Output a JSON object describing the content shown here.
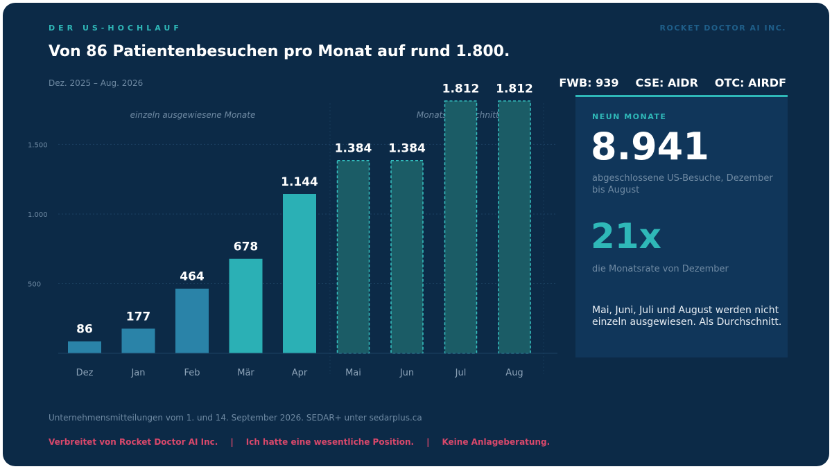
{
  "header": {
    "eyebrow": "DER US-HOCHLAUF",
    "brand": "ROCKET DOCTOR AI INC.",
    "title": "Von 86 Patientenbesuchen pro Monat auf rund 1.800.",
    "period": "Dez. 2025 – Aug. 2026",
    "tickers": [
      "FWB: 939",
      "CSE: AIDR",
      "OTC: AIRDF"
    ]
  },
  "chart_data": {
    "type": "bar",
    "categories": [
      "Dez",
      "Jan",
      "Feb",
      "Mär",
      "Apr",
      "Mai",
      "Jun",
      "Jul",
      "Aug"
    ],
    "values": [
      86,
      177,
      464,
      678,
      1144,
      1384,
      1384,
      1812,
      1812
    ],
    "value_labels": [
      "86",
      "177",
      "464",
      "678",
      "1.144",
      "1.384",
      "1.384",
      "1.812",
      "1.812"
    ],
    "bar_style": [
      "solid",
      "solid",
      "solid",
      "solid",
      "solid",
      "average",
      "average",
      "average",
      "average"
    ],
    "group_labels": [
      "einzeln ausgewiesene Monate",
      "Monatsdurchschnitte"
    ],
    "yticks": [
      500,
      1000,
      1500
    ],
    "ytick_labels": [
      "500",
      "1.000",
      "1.500"
    ],
    "ylim": [
      0,
      1900
    ],
    "grid": true,
    "colors": {
      "bar_early": "#2a83a8",
      "bar_late": "#2bb0b5",
      "bar_average_fill": "#1b5c66",
      "bar_average_stroke": "#36c4c4"
    }
  },
  "panel": {
    "label": "NEUN MONATE",
    "total": "8.941",
    "total_caption": "abgeschlossene US-Besuche, Dezember bis August",
    "ratio": "21x",
    "ratio_caption": "die Monatsrate von Dezember",
    "note": "Mai, Juni, Juli und August werden nicht einzeln ausgewiesen. Als Durchschnitt."
  },
  "footer": {
    "source": "Unternehmensmitteilungen vom 1. und 14. September 2026. SEDAR+ unter sedarplus.ca",
    "disclaimer": [
      "Verbreitet von Rocket Doctor AI Inc.",
      "Ich hatte eine wesentliche Position.",
      "Keine Anlageberatung."
    ],
    "separator": "|"
  },
  "colors": {
    "background": "#0c2a47",
    "accent": "#2fb8b8",
    "disclaimer": "#d9486b"
  }
}
